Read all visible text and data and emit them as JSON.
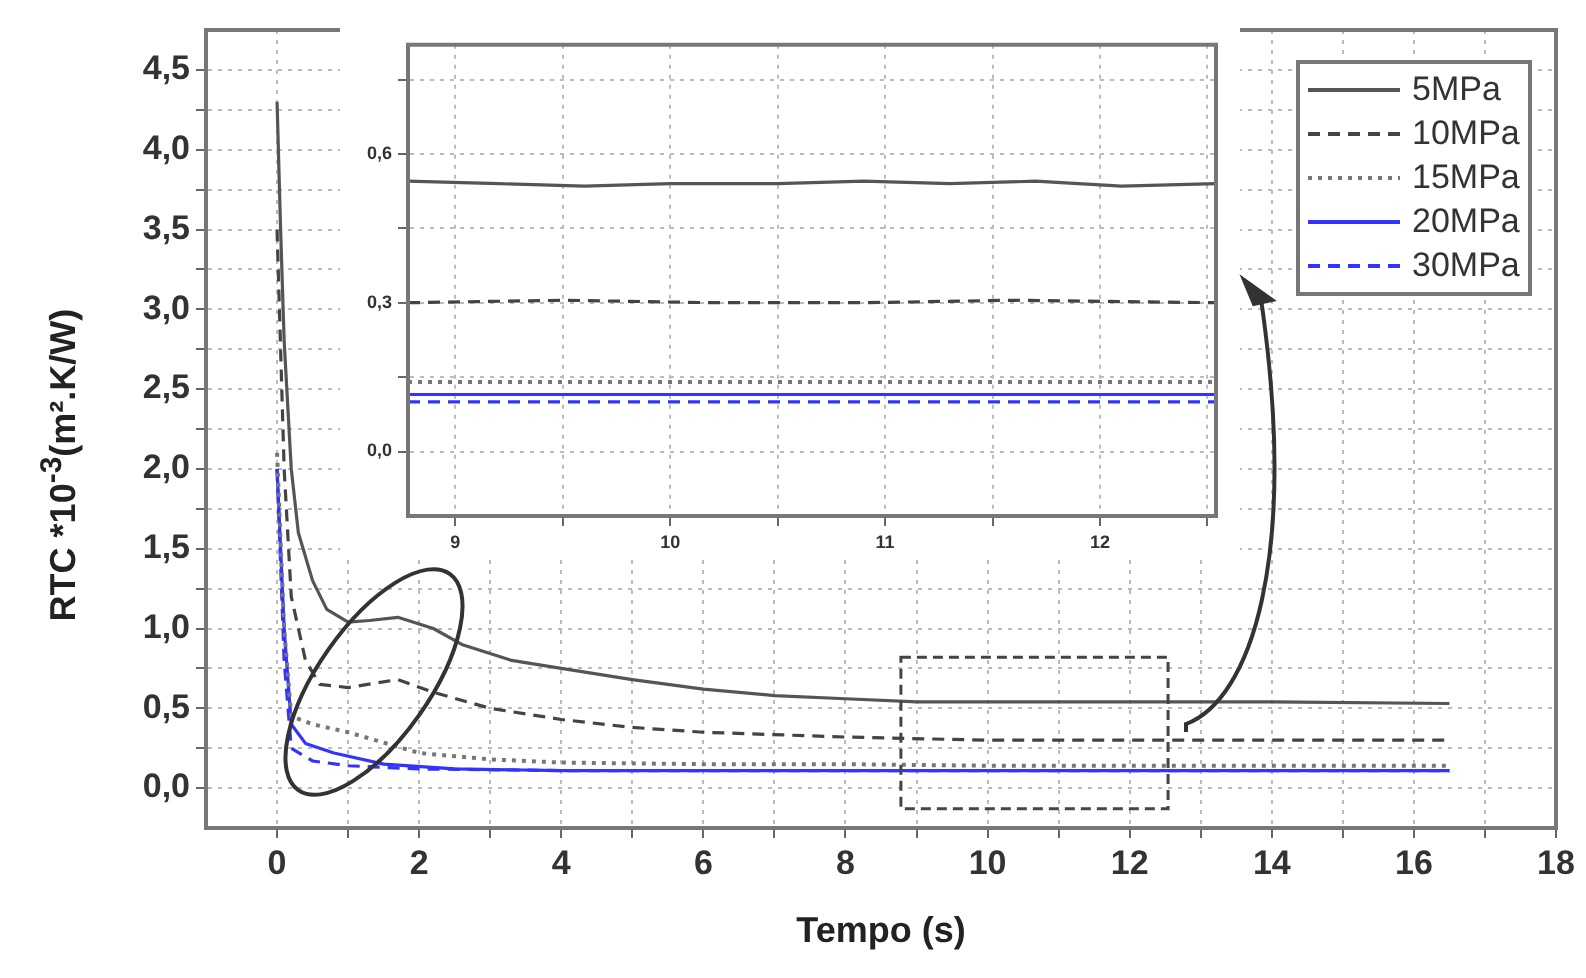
{
  "chart_data": [
    {
      "type": "line",
      "xlabel": "Tempo (s)",
      "ylabel": "RTC *10$^{-3}$(m².K/W)",
      "xlim": [
        -1,
        18
      ],
      "ylim": [
        -0.25,
        4.75
      ],
      "xticks": [
        0,
        {
          "value": 1,
          "label": null
        },
        2,
        {
          "value": 3,
          "label": null
        },
        4,
        {
          "value": 5,
          "label": null
        },
        6,
        {
          "value": 7,
          "label": null
        },
        8,
        {
          "value": 9,
          "label": null
        },
        10,
        {
          "value": 11,
          "label": null
        },
        12,
        {
          "value": 13,
          "label": null
        },
        14,
        {
          "value": 15,
          "label": null
        },
        16,
        {
          "value": 17,
          "label": null
        },
        18
      ],
      "yticks": [
        {
          "value": 0,
          "label": "0,0"
        },
        {
          "value": 0.25,
          "label": null
        },
        {
          "value": 0.5,
          "label": "0,5"
        },
        {
          "value": 0.75,
          "label": null
        },
        {
          "value": 1,
          "label": "1,0"
        },
        {
          "value": 1.25,
          "label": null
        },
        {
          "value": 1.5,
          "label": "1,5"
        },
        {
          "value": 1.75,
          "label": null
        },
        {
          "value": 2,
          "label": "2,0"
        },
        {
          "value": 2.25,
          "label": null
        },
        {
          "value": 2.5,
          "label": "2,5"
        },
        {
          "value": 2.75,
          "label": null
        },
        {
          "value": 3,
          "label": "3,0"
        },
        {
          "value": 3.25,
          "label": null
        },
        {
          "value": 3.5,
          "label": "3,5"
        },
        {
          "value": 3.75,
          "label": null
        },
        {
          "value": 4,
          "label": "4,0"
        },
        {
          "value": 4.25,
          "label": null
        },
        {
          "value": 4.5,
          "label": "4,5"
        }
      ],
      "grid": true,
      "legend": "top right",
      "marker": "none",
      "series": [
        {
          "name": "5MPa",
          "color": "#555555",
          "line_style": "solid",
          "x": [
            0,
            0.05,
            0.1,
            0.2,
            0.3,
            0.5,
            0.7,
            1.0,
            1.3,
            1.7,
            2.2,
            2.6,
            3.3,
            4,
            5,
            6,
            7,
            8,
            9,
            10,
            12,
            14,
            16.5
          ],
          "values": [
            4.3,
            3.5,
            2.8,
            2.0,
            1.6,
            1.3,
            1.12,
            1.04,
            1.05,
            1.07,
            1.0,
            0.9,
            0.8,
            0.75,
            0.68,
            0.62,
            0.58,
            0.56,
            0.54,
            0.54,
            0.54,
            0.54,
            0.53
          ]
        },
        {
          "name": "10MPa",
          "color": "#444444",
          "line_style": "dashed",
          "x": [
            0,
            0.1,
            0.2,
            0.4,
            0.6,
            1.0,
            1.7,
            2.2,
            3,
            4,
            5,
            6,
            8,
            10,
            12,
            14,
            16.5
          ],
          "values": [
            3.5,
            2.0,
            1.2,
            0.8,
            0.65,
            0.63,
            0.68,
            0.6,
            0.5,
            0.43,
            0.38,
            0.35,
            0.32,
            0.3,
            0.3,
            0.3,
            0.3
          ]
        },
        {
          "name": "15MPa",
          "color": "#777777",
          "line_style": "dotted",
          "x": [
            0,
            0.1,
            0.2,
            0.5,
            1,
            2,
            3,
            4,
            6,
            8,
            10,
            12,
            14,
            16.5
          ],
          "values": [
            2.1,
            1.0,
            0.45,
            0.4,
            0.35,
            0.22,
            0.18,
            0.16,
            0.15,
            0.15,
            0.14,
            0.14,
            0.14,
            0.14
          ]
        },
        {
          "name": "20MPa",
          "color": "#3333ff",
          "line_style": "solid",
          "x": [
            0,
            0.1,
            0.2,
            0.4,
            0.8,
            1.5,
            2.5,
            4,
            8,
            12,
            16.5
          ],
          "values": [
            2.0,
            1.0,
            0.4,
            0.28,
            0.22,
            0.15,
            0.12,
            0.11,
            0.11,
            0.11,
            0.11
          ]
        },
        {
          "name": "30MPa",
          "color": "#3333ff",
          "line_style": "dashed",
          "x": [
            0,
            0.1,
            0.2,
            0.5,
            1,
            2,
            4,
            8,
            12,
            16.5
          ],
          "values": [
            2.0,
            0.8,
            0.25,
            0.17,
            0.14,
            0.12,
            0.11,
            0.11,
            0.11,
            0.11
          ]
        }
      ]
    },
    {
      "type": "line",
      "xlim": [
        8.78,
        12.54
      ],
      "ylim": [
        -0.13,
        0.82
      ],
      "xticks": [
        {
          "value": 9,
          "label": "9"
        },
        {
          "value": 9.5,
          "label": null
        },
        {
          "value": 10,
          "label": "10"
        },
        {
          "value": 10.5,
          "label": null
        },
        {
          "value": 11,
          "label": "11"
        },
        {
          "value": 11.5,
          "label": null
        },
        {
          "value": 12,
          "label": "12"
        },
        {
          "value": 12.5,
          "label": null
        }
      ],
      "yticks": [
        {
          "value": 0,
          "label": "0,0"
        },
        {
          "value": 0.15,
          "label": null
        },
        {
          "value": 0.3,
          "label": "0,3"
        },
        {
          "value": 0.45,
          "label": null
        },
        {
          "value": 0.6,
          "label": "0,6"
        },
        {
          "value": 0.75,
          "label": null
        }
      ],
      "grid": true,
      "marker": "none",
      "series": [
        {
          "color": "#555555",
          "line_style": "solid",
          "x": [
            8.78,
            9.2,
            9.6,
            10.0,
            10.5,
            10.9,
            11.3,
            11.7,
            12.1,
            12.54
          ],
          "values": [
            0.545,
            0.54,
            0.535,
            0.54,
            0.54,
            0.545,
            0.54,
            0.545,
            0.535,
            0.54
          ]
        },
        {
          "color": "#444444",
          "line_style": "dashed",
          "x": [
            8.78,
            9.5,
            10.2,
            10.9,
            11.6,
            12.54
          ],
          "values": [
            0.3,
            0.305,
            0.3,
            0.3,
            0.305,
            0.3
          ]
        },
        {
          "color": "#777777",
          "line_style": "dotted",
          "x": [
            8.78,
            9.5,
            10.2,
            10.9,
            11.6,
            12.54
          ],
          "values": [
            0.14,
            0.14,
            0.14,
            0.14,
            0.14,
            0.14
          ]
        },
        {
          "color": "#3333ff",
          "line_style": "solid",
          "x": [
            8.78,
            9.5,
            10.2,
            10.9,
            11.6,
            12.54
          ],
          "values": [
            0.115,
            0.115,
            0.115,
            0.115,
            0.115,
            0.115
          ]
        },
        {
          "color": "#3333ff",
          "line_style": "dashed",
          "x": [
            8.78,
            9.5,
            10.2,
            10.9,
            11.6,
            12.54
          ],
          "values": [
            0.1,
            0.1,
            0.1,
            0.1,
            0.1,
            0.1
          ]
        }
      ]
    }
  ]
}
